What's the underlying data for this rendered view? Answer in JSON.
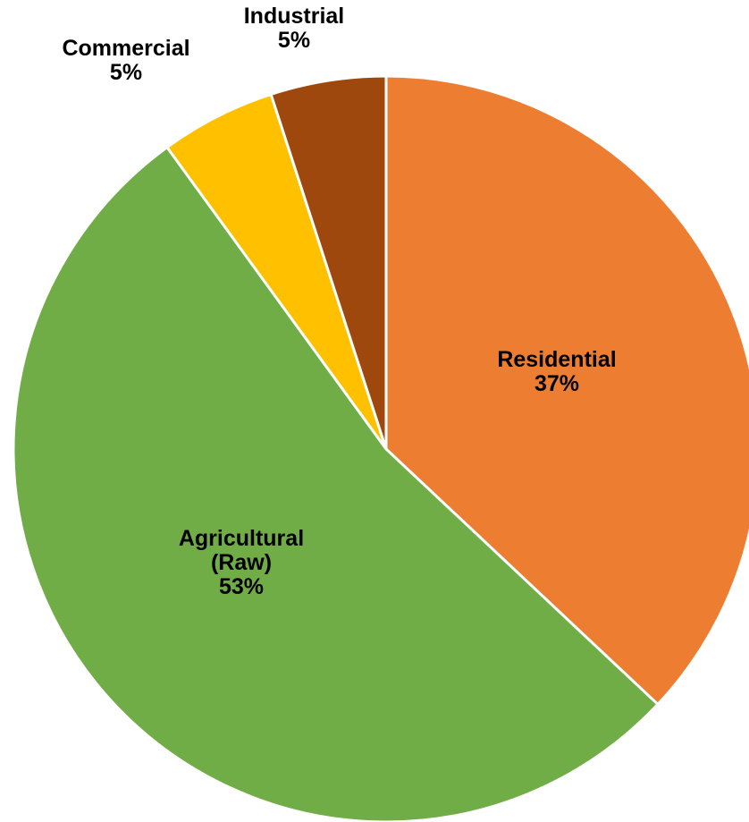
{
  "chart_data": {
    "type": "pie",
    "title": "",
    "slices": [
      {
        "label": [
          "Residential"
        ],
        "value": 37,
        "percent_label": "37%",
        "color": "#ED7D31"
      },
      {
        "label": [
          "Agricultural",
          "(Raw)"
        ],
        "value": 53,
        "percent_label": "53%",
        "color": "#70AD47"
      },
      {
        "label": [
          "Commercial"
        ],
        "value": 5,
        "percent_label": "5%",
        "color": "#FFC000"
      },
      {
        "label": [
          "Industrial"
        ],
        "value": 5,
        "percent_label": "5%",
        "color": "#9E480E"
      }
    ],
    "start_angle": "12 o'clock",
    "direction": "clockwise",
    "legend": "none",
    "data_labels": "category name and percentage"
  }
}
